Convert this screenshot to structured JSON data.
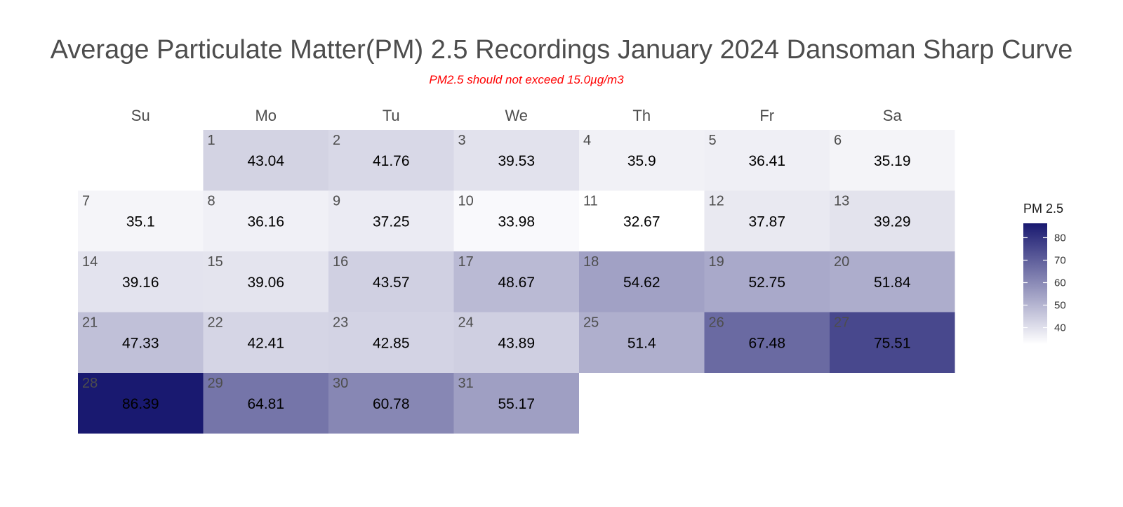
{
  "chart_data": {
    "type": "heatmap",
    "title": "Average Particulate Matter(PM) 2.5 Recordings January 2024 Dansoman Sharp Curve",
    "subtitle": "PM2.5 should not exceed 15.0µg/m3",
    "weekdays": [
      "Su",
      "Mo",
      "Tu",
      "We",
      "Th",
      "Fr",
      "Sa"
    ],
    "first_weekday_index": 1,
    "days": [
      1,
      2,
      3,
      4,
      5,
      6,
      7,
      8,
      9,
      10,
      11,
      12,
      13,
      14,
      15,
      16,
      17,
      18,
      19,
      20,
      21,
      22,
      23,
      24,
      25,
      26,
      27,
      28,
      29,
      30,
      31
    ],
    "values": [
      "43.04",
      "41.76",
      "39.53",
      "35.9",
      "36.41",
      "35.19",
      "35.1",
      "36.16",
      "37.25",
      "33.98",
      "32.67",
      "37.87",
      "39.29",
      "39.16",
      "39.06",
      "43.57",
      "48.67",
      "54.62",
      "52.75",
      "51.84",
      "47.33",
      "42.41",
      "42.85",
      "43.89",
      "51.4",
      "67.48",
      "75.51",
      "86.39",
      "64.81",
      "60.78",
      "55.17"
    ],
    "legend": {
      "title": "PM 2.5",
      "ticks": [
        40,
        50,
        60,
        70,
        80
      ],
      "range": [
        32.67,
        86.39
      ],
      "low_color": "#ffffff",
      "high_color": "#191970"
    }
  }
}
